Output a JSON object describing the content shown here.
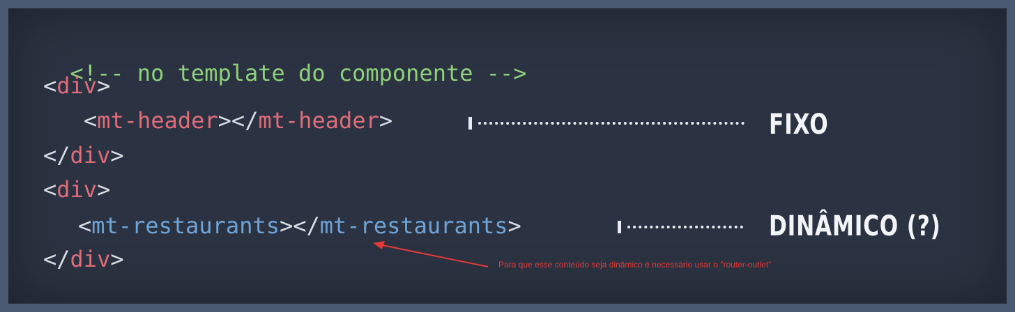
{
  "slide": {
    "line_comment": "<!-- no template do componente -->",
    "div_open": "div",
    "header_tag": "mt-header",
    "restaurants_tag": "mt-restaurants",
    "label_fixed": "FIXO",
    "label_dynamic": "DINÂMICO (?)",
    "note": "Para que esse conteúdo seja dinâmico é necessário usar o \"router-outlet\"",
    "colors": {
      "background": "#2b3342",
      "comment": "#8fd07a",
      "tag_red": "#e06c7a",
      "tag_blue": "#6fa3d6",
      "annotation": "#e53838"
    }
  }
}
